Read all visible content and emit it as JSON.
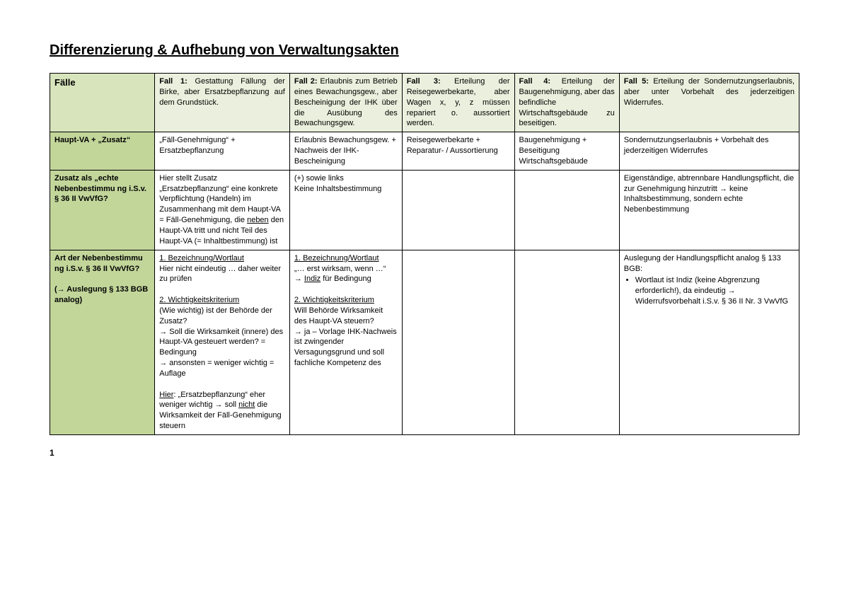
{
  "title": "Differenzierung & Aufhebung von Verwaltungsakten",
  "colWidths": [
    "14%",
    "18%",
    "15%",
    "15%",
    "14%",
    "24%"
  ],
  "headerRow": {
    "label": "Fälle",
    "cells": [
      {
        "lead": "Fall 1:",
        "rest": " Gestattung Fällung der Birke, aber Ersatzbepflanzung auf dem Grundstück."
      },
      {
        "lead": "Fall 2:",
        "rest": " Erlaubnis zum Betrieb eines Bewachungsgew., aber Bescheinigung der IHK über die Ausübung des Bewachungsgew."
      },
      {
        "lead": "Fall 3:",
        "rest": " Erteilung der Reisegewerbekarte, aber Wagen x, y, z müssen repariert o. aussortiert werden."
      },
      {
        "lead": "Fall 4:",
        "rest": " Erteilung der Baugenehmigung, aber das befindliche Wirtschaftsgebäude zu beseitigen."
      },
      {
        "lead": "Fall 5:",
        "rest": " Erteilung der Sondernutzungserlaubnis, aber unter Vorbehalt des jederzeitigen Widerrufes."
      }
    ]
  },
  "rows": [
    {
      "label": "Haupt-VA + „Zusatz“",
      "cells": [
        "„Fäll-Genehmigung“ + Ersatzbepflanzung",
        "Erlaubnis Bewachungsgew. + Nachweis der IHK-Bescheinigung",
        "Reisegewerbekarte + Reparatur- / Aussortierung",
        "Baugenehmigung + Beseitigung Wirtschaftsgebäude",
        "Sondernutzungserlaubnis + Vorbehalt des jederzeitigen Widerrufes"
      ]
    }
  ],
  "row2": {
    "label": "Zusatz als „echte Nebenbestimmu ng i.S.v. § 36 II VwVfG?",
    "c1_a": "Hier stellt Zusatz „Ersatzbepflanzung“ eine konkrete Verpflichtung (Handeln) im Zusammenhang mit dem Haupt-VA = Fäll-Genehmigung, die ",
    "c1_u": "neben",
    "c1_b": " den Haupt-VA tritt und nicht Teil des Haupt-VA (= Inhaltbestimmung) ist",
    "c2": "(+) sowie links\nKeine Inhaltsbestimmung",
    "c3": "",
    "c4": "",
    "c5": "Eigenständige, abtrennbare Handlungspflicht, die zur Genehmigung hinzutritt → keine Inhaltsbestimmung, sondern echte Nebenbestimmung"
  },
  "row3": {
    "label": "Art der Nebenbestimmu ng i.S.v. § 36 II VwVfG?\n\n(→ Auslegung § 133 BGB analog)",
    "c1": {
      "p1u": "1. Bezeichnung/Wortlaut",
      "p1": "Hier nicht eindeutig … daher weiter zu prüfen",
      "p2u": "2. Wichtigkeitskriterium",
      "p2": "(Wie wichtig) ist der Behörde der Zusatz?\n→ Soll die Wirksamkeit (innere) des Haupt-VA gesteuert werden? = Bedingung\n→ ansonsten = weniger wichtig = Auflage",
      "p3a": "Hier",
      "p3b": ": „Ersatzbepflanzung“ eher weniger wichtig → soll ",
      "p3u": "nicht",
      "p3c": " die Wirksamkeit der Fäll-Genehmigung steuern"
    },
    "c2": {
      "p1u": "1. Bezeichnung/Wortlaut",
      "p1a": "„… erst wirksam, wenn …“\n→ ",
      "p1b": "Indiz",
      "p1c": " für Bedingung",
      "p2u": "2. Wichtigkeitskriterium",
      "p2": "Will Behörde Wirksamkeit des Haupt-VA steuern?\n→ ja – Vorlage IHK-Nachweis ist zwingender Versagungsgrund und soll fachliche Kompetenz des"
    },
    "c3": "",
    "c4": "",
    "c5": {
      "lead": "Auslegung der Handlungspflicht analog § 133 BGB:",
      "bullet": "Wortlaut ist Indiz (keine Abgrenzung erforderlich!), da eindeutig → Widerrufsvorbehalt i.S.v. § 36 II Nr. 3 VwVfG"
    }
  },
  "pageNumber": "1"
}
